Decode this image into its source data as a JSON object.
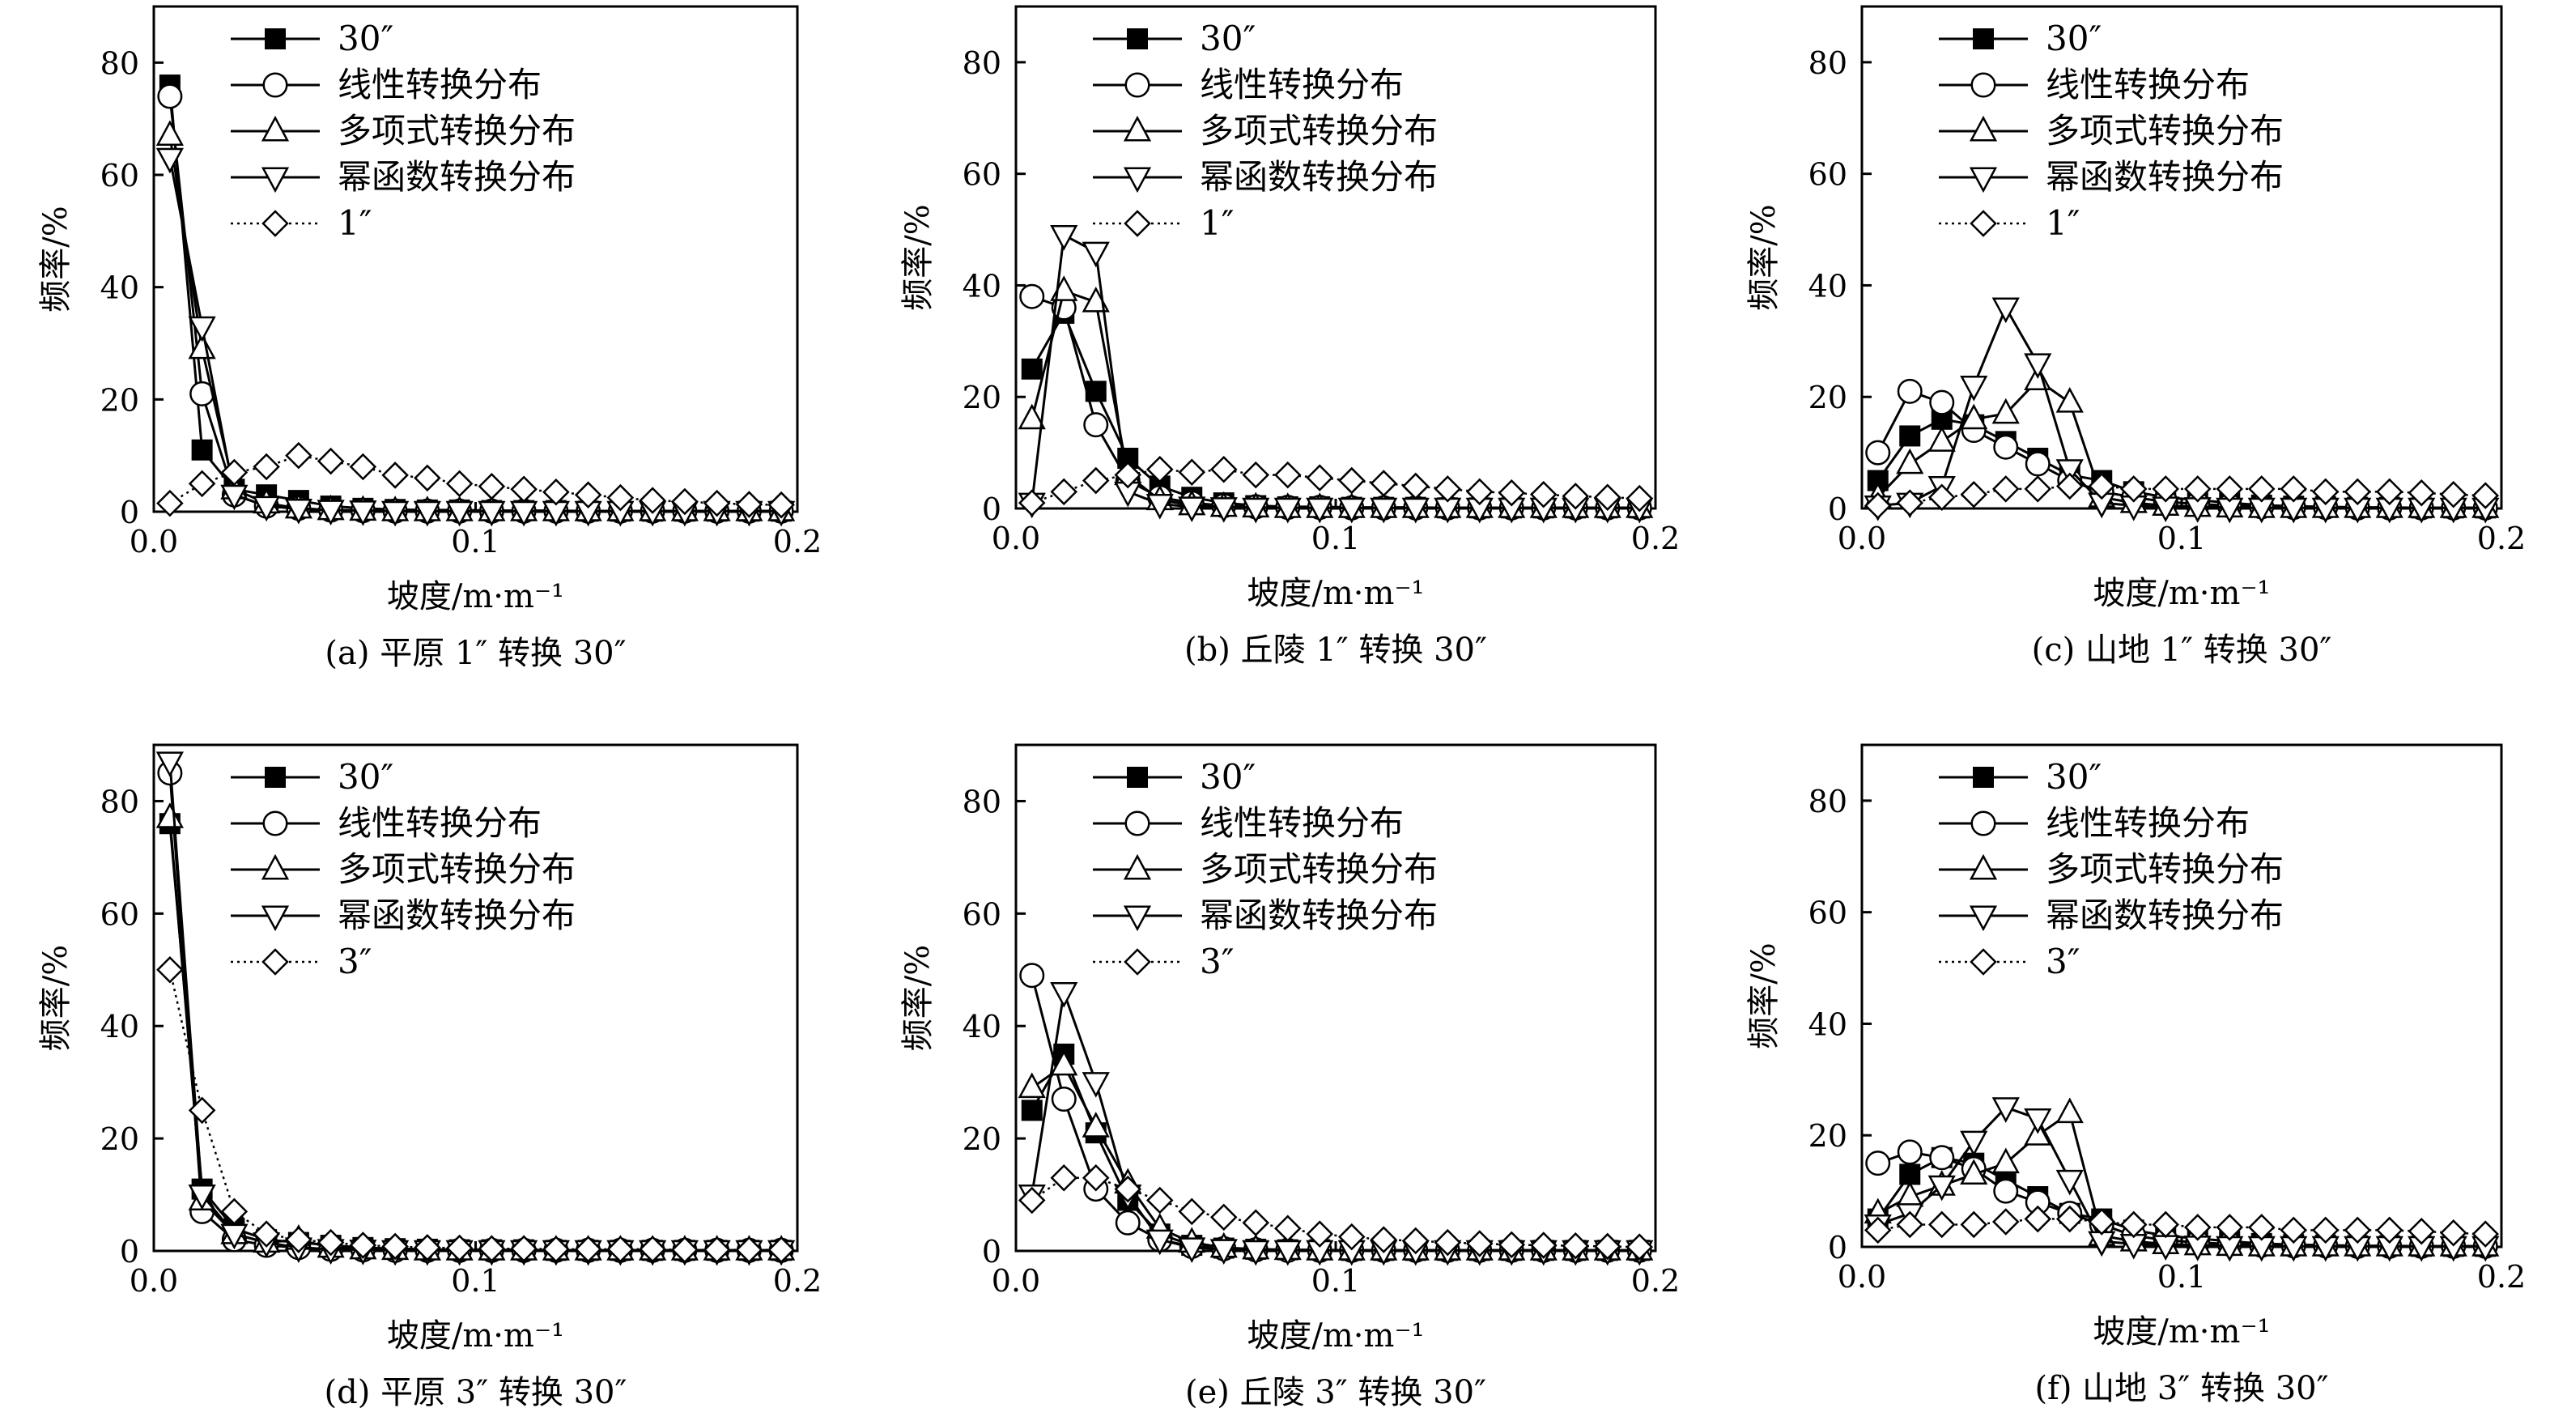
{
  "figure": {
    "y_label": "频率/%",
    "x_label": "坡度/m·m⁻¹",
    "x_ticks": [
      "0.0",
      "0.1",
      "0.2"
    ],
    "y_ticks": [
      "0",
      "20",
      "40",
      "60",
      "80"
    ],
    "colors": {
      "ink": "#000000",
      "background": "#ffffff"
    }
  },
  "chart_data": [
    {
      "type": "line",
      "caption": "(a) 平原 1″ 转换 30″",
      "xlim": [
        0,
        0.2
      ],
      "ylim": [
        0,
        90
      ],
      "x": [
        0.005,
        0.015,
        0.025,
        0.035,
        0.045,
        0.055,
        0.065,
        0.075,
        0.085,
        0.095,
        0.105,
        0.115,
        0.125,
        0.135,
        0.145,
        0.155,
        0.165,
        0.175,
        0.185,
        0.195
      ],
      "series": [
        {
          "name": "30″",
          "marker": "square-filled",
          "line": "solid",
          "values": [
            76,
            11,
            4,
            3,
            2,
            1,
            0.6,
            0.4,
            0.3,
            0.3,
            0.2,
            0.2,
            0.2,
            0.1,
            0.1,
            0.1,
            0.1,
            0.1,
            0.1,
            0.1
          ]
        },
        {
          "name": "线性转换分布",
          "marker": "circle",
          "line": "solid",
          "values": [
            74,
            21,
            3,
            1,
            0.6,
            0.3,
            0.2,
            0.1,
            0.1,
            0.1,
            0.1,
            0.1,
            0.1,
            0.1,
            0.1,
            0.1,
            0.1,
            0.1,
            0.1,
            0.1
          ]
        },
        {
          "name": "多项式转换分布",
          "marker": "triangle-up",
          "line": "solid",
          "values": [
            67,
            29,
            4,
            1.5,
            0.6,
            0.3,
            0.2,
            0.1,
            0.1,
            0.1,
            0.1,
            0.1,
            0.1,
            0.1,
            0.1,
            0.1,
            0.1,
            0.1,
            0.1,
            0.1
          ]
        },
        {
          "name": "幂函数转换分布",
          "marker": "triangle-down",
          "line": "solid",
          "values": [
            63,
            33,
            3,
            1,
            0.5,
            0.3,
            0.2,
            0.1,
            0.1,
            0.1,
            0.1,
            0.1,
            0.1,
            0.1,
            0.1,
            0.1,
            0.1,
            0.1,
            0.1,
            0.1
          ]
        },
        {
          "name": "1″",
          "marker": "diamond",
          "line": "dotted",
          "values": [
            1.5,
            5,
            7,
            8,
            10,
            9,
            8,
            6.5,
            6,
            5,
            4.5,
            4,
            3.5,
            3,
            2.5,
            2,
            1.8,
            1.5,
            1.3,
            1.2
          ]
        }
      ]
    },
    {
      "type": "line",
      "caption": "(b) 丘陵 1″ 转换 30″",
      "xlim": [
        0,
        0.2
      ],
      "ylim": [
        0,
        90
      ],
      "x": [
        0.005,
        0.015,
        0.025,
        0.035,
        0.045,
        0.055,
        0.065,
        0.075,
        0.085,
        0.095,
        0.105,
        0.115,
        0.125,
        0.135,
        0.145,
        0.155,
        0.165,
        0.175,
        0.185,
        0.195
      ],
      "series": [
        {
          "name": "30″",
          "marker": "square-filled",
          "line": "solid",
          "values": [
            25,
            35,
            21,
            9,
            4,
            2,
            1,
            0.5,
            0.3,
            0.3,
            0.2,
            0.2,
            0.2,
            0.1,
            0.1,
            0.1,
            0.1,
            0.1,
            0.1,
            0.1
          ]
        },
        {
          "name": "线性转换分布",
          "marker": "circle",
          "line": "solid",
          "values": [
            38,
            36,
            15,
            5,
            2,
            1,
            0.5,
            0.3,
            0.2,
            0.2,
            0.1,
            0.1,
            0.1,
            0.1,
            0.1,
            0.1,
            0.1,
            0.1,
            0.1,
            0.1
          ]
        },
        {
          "name": "多项式转换分布",
          "marker": "triangle-up",
          "line": "solid",
          "values": [
            16,
            39,
            37,
            6,
            1.5,
            0.6,
            0.3,
            0.2,
            0.1,
            0.1,
            0.1,
            0.1,
            0.1,
            0.1,
            0.1,
            0.1,
            0.1,
            0.1,
            0.1,
            0.1
          ]
        },
        {
          "name": "幂函数转换分布",
          "marker": "triangle-down",
          "line": "solid",
          "values": [
            1,
            49,
            46,
            3,
            0.8,
            0.3,
            0.2,
            0.1,
            0.1,
            0.1,
            0.1,
            0.1,
            0.1,
            0.1,
            0.1,
            0.1,
            0.1,
            0.1,
            0.1,
            0.1
          ]
        },
        {
          "name": "1″",
          "marker": "diamond",
          "line": "dotted",
          "values": [
            1,
            3,
            5,
            6,
            7,
            6.5,
            7,
            6,
            6,
            5.5,
            5,
            4.5,
            4,
            3.5,
            3,
            2.8,
            2.5,
            2.2,
            2,
            1.8
          ]
        }
      ]
    },
    {
      "type": "line",
      "caption": "(c) 山地 1″ 转换 30″",
      "xlim": [
        0,
        0.2
      ],
      "ylim": [
        0,
        90
      ],
      "x": [
        0.005,
        0.015,
        0.025,
        0.035,
        0.045,
        0.055,
        0.065,
        0.075,
        0.085,
        0.095,
        0.105,
        0.115,
        0.125,
        0.135,
        0.145,
        0.155,
        0.165,
        0.175,
        0.185,
        0.195
      ],
      "series": [
        {
          "name": "30″",
          "marker": "square-filled",
          "line": "solid",
          "values": [
            5,
            13,
            16,
            15,
            12,
            9,
            6,
            5,
            3,
            2,
            1.5,
            1,
            0.6,
            0.4,
            0.3,
            0.2,
            0.2,
            0.1,
            0.1,
            0.1
          ]
        },
        {
          "name": "线性转换分布",
          "marker": "circle",
          "line": "solid",
          "values": [
            10,
            21,
            19,
            14,
            11,
            8,
            5,
            3,
            2,
            1.2,
            0.8,
            0.5,
            0.3,
            0.2,
            0.2,
            0.1,
            0.1,
            0.1,
            0.1,
            0.1
          ]
        },
        {
          "name": "多项式转换分布",
          "marker": "triangle-up",
          "line": "solid",
          "values": [
            2,
            8,
            12,
            16,
            17,
            23,
            19,
            2,
            1,
            0.5,
            0.3,
            0.2,
            0.1,
            0.1,
            0.1,
            0.1,
            0.1,
            0.1,
            0.1,
            0.1
          ]
        },
        {
          "name": "幂函数转换分布",
          "marker": "triangle-down",
          "line": "solid",
          "values": [
            0.5,
            1,
            4,
            22,
            36,
            26,
            7,
            1,
            0.5,
            0.3,
            0.2,
            0.1,
            0.1,
            0.1,
            0.1,
            0.1,
            0.1,
            0.1,
            0.1,
            0.1
          ]
        },
        {
          "name": "1″",
          "marker": "diamond",
          "line": "dotted",
          "values": [
            0.5,
            1,
            2,
            2.5,
            3.5,
            3.5,
            4,
            4,
            3.5,
            3.5,
            3.5,
            3.5,
            3.5,
            3.5,
            3,
            3,
            3,
            2.8,
            2.5,
            2.3
          ]
        }
      ]
    },
    {
      "type": "line",
      "caption": "(d) 平原 3″ 转换 30″",
      "xlim": [
        0,
        0.2
      ],
      "ylim": [
        0,
        90
      ],
      "x": [
        0.005,
        0.015,
        0.025,
        0.035,
        0.045,
        0.055,
        0.065,
        0.075,
        0.085,
        0.095,
        0.105,
        0.115,
        0.125,
        0.135,
        0.145,
        0.155,
        0.165,
        0.175,
        0.185,
        0.195
      ],
      "series": [
        {
          "name": "30″",
          "marker": "square-filled",
          "line": "solid",
          "values": [
            76,
            11,
            4,
            2,
            1.5,
            1,
            0.6,
            0.4,
            0.3,
            0.2,
            0.2,
            0.2,
            0.1,
            0.1,
            0.1,
            0.1,
            0.1,
            0.1,
            0.1,
            0.1
          ]
        },
        {
          "name": "线性转换分布",
          "marker": "circle",
          "line": "solid",
          "values": [
            85,
            7,
            2,
            1,
            0.6,
            0.3,
            0.2,
            0.1,
            0.1,
            0.1,
            0.1,
            0.1,
            0.1,
            0.1,
            0.1,
            0.1,
            0.1,
            0.1,
            0.1,
            0.1
          ]
        },
        {
          "name": "多项式转换分布",
          "marker": "triangle-up",
          "line": "solid",
          "values": [
            77,
            9,
            3,
            1.5,
            2,
            0.6,
            0.3,
            0.2,
            0.1,
            0.1,
            0.1,
            0.1,
            0.1,
            0.1,
            0.1,
            0.1,
            0.1,
            0.1,
            0.1,
            0.1
          ]
        },
        {
          "name": "幂函数转换分布",
          "marker": "triangle-down",
          "line": "solid",
          "values": [
            87,
            10,
            3,
            1.5,
            0.6,
            0.3,
            0.2,
            0.1,
            0.1,
            0.1,
            0.1,
            0.1,
            0.1,
            0.1,
            0.1,
            0.1,
            0.1,
            0.1,
            0.1,
            0.1
          ]
        },
        {
          "name": "3″",
          "marker": "diamond",
          "line": "dotted",
          "values": [
            50,
            25,
            7,
            3,
            2,
            1.5,
            1,
            0.8,
            0.6,
            0.5,
            0.4,
            0.4,
            0.3,
            0.3,
            0.3,
            0.3,
            0.2,
            0.2,
            0.2,
            0.2
          ]
        }
      ]
    },
    {
      "type": "line",
      "caption": "(e) 丘陵 3″ 转换 30″",
      "xlim": [
        0,
        0.2
      ],
      "ylim": [
        0,
        90
      ],
      "x": [
        0.005,
        0.015,
        0.025,
        0.035,
        0.045,
        0.055,
        0.065,
        0.075,
        0.085,
        0.095,
        0.105,
        0.115,
        0.125,
        0.135,
        0.145,
        0.155,
        0.165,
        0.175,
        0.185,
        0.195
      ],
      "series": [
        {
          "name": "30″",
          "marker": "square-filled",
          "line": "solid",
          "values": [
            25,
            35,
            21,
            9,
            3,
            1,
            0.5,
            0.3,
            0.2,
            0.2,
            0.1,
            0.1,
            0.1,
            0.1,
            0.1,
            0.1,
            0.1,
            0.1,
            0.1,
            0.1
          ]
        },
        {
          "name": "线性转换分布",
          "marker": "circle",
          "line": "solid",
          "values": [
            49,
            27,
            11,
            5,
            2,
            0.8,
            0.4,
            0.2,
            0.1,
            0.1,
            0.1,
            0.1,
            0.1,
            0.1,
            0.1,
            0.1,
            0.1,
            0.1,
            0.1,
            0.1
          ]
        },
        {
          "name": "多项式转换分布",
          "marker": "triangle-up",
          "line": "solid",
          "values": [
            29,
            33,
            22,
            12,
            4,
            1.5,
            0.6,
            0.3,
            0.2,
            0.1,
            0.1,
            0.1,
            0.1,
            0.1,
            0.1,
            0.1,
            0.1,
            0.1,
            0.1,
            0.1
          ]
        },
        {
          "name": "幂函数转换分布",
          "marker": "triangle-down",
          "line": "solid",
          "values": [
            10,
            46,
            30,
            10,
            2,
            0.6,
            0.3,
            0.1,
            0.1,
            0.1,
            0.1,
            0.1,
            0.1,
            0.1,
            0.1,
            0.1,
            0.1,
            0.1,
            0.1,
            0.1
          ]
        },
        {
          "name": "3″",
          "marker": "diamond",
          "line": "dotted",
          "values": [
            9,
            13,
            13,
            11,
            9,
            7,
            6,
            5,
            4,
            3,
            2.5,
            2,
            1.8,
            1.5,
            1.3,
            1.1,
            1,
            0.9,
            0.8,
            0.7
          ]
        }
      ]
    },
    {
      "type": "line",
      "caption": "(f) 山地 3″ 转换 30″",
      "xlim": [
        0,
        0.2
      ],
      "ylim": [
        0,
        90
      ],
      "x": [
        0.005,
        0.015,
        0.025,
        0.035,
        0.045,
        0.055,
        0.065,
        0.075,
        0.085,
        0.095,
        0.105,
        0.115,
        0.125,
        0.135,
        0.145,
        0.155,
        0.165,
        0.175,
        0.185,
        0.195
      ],
      "series": [
        {
          "name": "30″",
          "marker": "square-filled",
          "line": "solid",
          "values": [
            5,
            13,
            16,
            15,
            12,
            9,
            6,
            5,
            3,
            2,
            1.5,
            1,
            0.6,
            0.4,
            0.3,
            0.2,
            0.2,
            0.1,
            0.1,
            0.1
          ]
        },
        {
          "name": "线性转换分布",
          "marker": "circle",
          "line": "solid",
          "values": [
            15,
            17,
            16,
            14,
            10,
            8,
            6,
            4,
            2,
            1.2,
            0.8,
            0.5,
            0.3,
            0.2,
            0.2,
            0.1,
            0.1,
            0.1,
            0.1,
            0.1
          ]
        },
        {
          "name": "多项式转换分布",
          "marker": "triangle-up",
          "line": "solid",
          "values": [
            6,
            9,
            11,
            13,
            15,
            20,
            24,
            2,
            1,
            0.5,
            0.3,
            0.2,
            0.1,
            0.1,
            0.1,
            0.1,
            0.1,
            0.1,
            0.1,
            0.1
          ]
        },
        {
          "name": "幂函数转换分布",
          "marker": "triangle-down",
          "line": "solid",
          "values": [
            4,
            6,
            11,
            19,
            25,
            23,
            12,
            1,
            0.5,
            0.3,
            0.2,
            0.1,
            0.1,
            0.1,
            0.1,
            0.1,
            0.1,
            0.1,
            0.1,
            0.1
          ]
        },
        {
          "name": "3″",
          "marker": "diamond",
          "line": "dotted",
          "values": [
            3,
            4,
            4,
            4,
            4.5,
            5,
            5,
            4.5,
            4,
            4,
            3.5,
            3.5,
            3.5,
            3,
            3,
            3,
            3,
            2.8,
            2.5,
            2.3
          ]
        }
      ]
    }
  ]
}
